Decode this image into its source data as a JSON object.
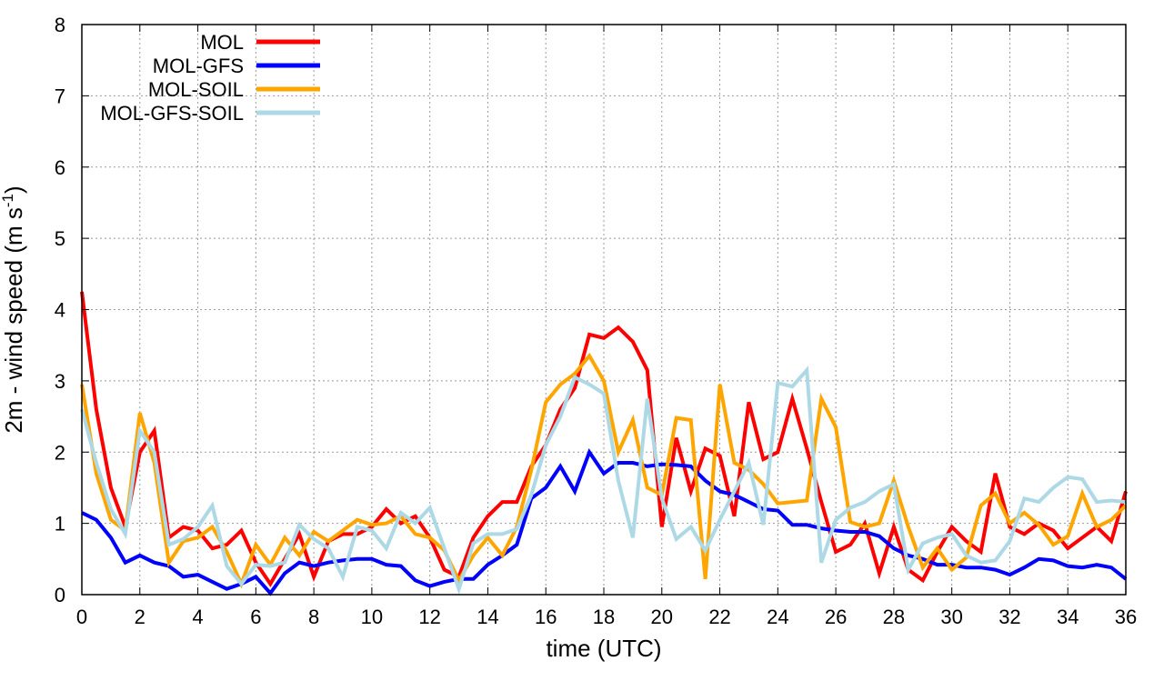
{
  "chart_data": {
    "type": "line",
    "xlabel": "time (UTC)",
    "ylabel": {
      "main": "2m - wind speed  (m s",
      "sup": "-1",
      "close": ")"
    },
    "xlim": [
      0,
      36
    ],
    "ylim": [
      0,
      8
    ],
    "xticks": [
      0,
      2,
      4,
      6,
      8,
      10,
      12,
      14,
      16,
      18,
      20,
      22,
      24,
      26,
      28,
      30,
      32,
      34,
      36
    ],
    "yticks": [
      0,
      1,
      2,
      3,
      4,
      5,
      6,
      7,
      8
    ],
    "grid": true,
    "legend_position": "top-left",
    "series": [
      {
        "name": "MOL",
        "color": "#ff0000",
        "points": [
          [
            0,
            4.25
          ],
          [
            0.5,
            2.6
          ],
          [
            1,
            1.5
          ],
          [
            1.5,
            0.95
          ],
          [
            2,
            2.0
          ],
          [
            2.5,
            2.3
          ],
          [
            3,
            0.8
          ],
          [
            3.5,
            0.95
          ],
          [
            4,
            0.9
          ],
          [
            4.5,
            0.65
          ],
          [
            5,
            0.7
          ],
          [
            5.5,
            0.9
          ],
          [
            6,
            0.45
          ],
          [
            6.5,
            0.15
          ],
          [
            7,
            0.5
          ],
          [
            7.5,
            0.85
          ],
          [
            8,
            0.25
          ],
          [
            8.5,
            0.75
          ],
          [
            9,
            0.85
          ],
          [
            9.5,
            0.85
          ],
          [
            10,
            0.95
          ],
          [
            10.5,
            1.2
          ],
          [
            11,
            1.0
          ],
          [
            11.5,
            1.1
          ],
          [
            12,
            0.8
          ],
          [
            12.5,
            0.35
          ],
          [
            13,
            0.25
          ],
          [
            13.5,
            0.8
          ],
          [
            14,
            1.1
          ],
          [
            14.5,
            1.3
          ],
          [
            15,
            1.3
          ],
          [
            15.5,
            1.8
          ],
          [
            16,
            2.1
          ],
          [
            16.5,
            2.6
          ],
          [
            17,
            2.9
          ],
          [
            17.5,
            3.65
          ],
          [
            18,
            3.6
          ],
          [
            18.5,
            3.75
          ],
          [
            19,
            3.55
          ],
          [
            19.5,
            3.15
          ],
          [
            20,
            0.95
          ],
          [
            20.5,
            2.2
          ],
          [
            21,
            1.45
          ],
          [
            21.5,
            2.05
          ],
          [
            22,
            1.95
          ],
          [
            22.5,
            1.1
          ],
          [
            23,
            2.7
          ],
          [
            23.5,
            1.9
          ],
          [
            24,
            2.0
          ],
          [
            24.5,
            2.75
          ],
          [
            25,
            2.05
          ],
          [
            25.5,
            1.3
          ],
          [
            26,
            0.6
          ],
          [
            26.5,
            0.7
          ],
          [
            27,
            1.0
          ],
          [
            27.5,
            0.3
          ],
          [
            28,
            0.95
          ],
          [
            28.5,
            0.35
          ],
          [
            29,
            0.2
          ],
          [
            29.5,
            0.6
          ],
          [
            30,
            0.95
          ],
          [
            30.5,
            0.75
          ],
          [
            31,
            0.6
          ],
          [
            31.5,
            1.7
          ],
          [
            32,
            0.95
          ],
          [
            32.5,
            0.85
          ],
          [
            33,
            1.0
          ],
          [
            33.5,
            0.9
          ],
          [
            34,
            0.65
          ],
          [
            34.5,
            0.8
          ],
          [
            35,
            0.95
          ],
          [
            35.5,
            0.75
          ],
          [
            36,
            1.45
          ]
        ]
      },
      {
        "name": "MOL-GFS",
        "color": "#0000ff",
        "points": [
          [
            0,
            1.15
          ],
          [
            0.5,
            1.05
          ],
          [
            1,
            0.8
          ],
          [
            1.5,
            0.45
          ],
          [
            2,
            0.55
          ],
          [
            2.5,
            0.45
          ],
          [
            3,
            0.4
          ],
          [
            3.5,
            0.25
          ],
          [
            4,
            0.28
          ],
          [
            4.5,
            0.18
          ],
          [
            5,
            0.08
          ],
          [
            5.5,
            0.15
          ],
          [
            6,
            0.25
          ],
          [
            6.5,
            0.02
          ],
          [
            7,
            0.3
          ],
          [
            7.5,
            0.45
          ],
          [
            8,
            0.4
          ],
          [
            8.5,
            0.45
          ],
          [
            9,
            0.48
          ],
          [
            9.5,
            0.5
          ],
          [
            10,
            0.5
          ],
          [
            10.5,
            0.42
          ],
          [
            11,
            0.4
          ],
          [
            11.5,
            0.2
          ],
          [
            12,
            0.12
          ],
          [
            12.5,
            0.18
          ],
          [
            13,
            0.22
          ],
          [
            13.5,
            0.22
          ],
          [
            14,
            0.42
          ],
          [
            14.5,
            0.55
          ],
          [
            15,
            0.7
          ],
          [
            15.5,
            1.35
          ],
          [
            16,
            1.5
          ],
          [
            16.5,
            1.8
          ],
          [
            17,
            1.45
          ],
          [
            17.5,
            2.0
          ],
          [
            18,
            1.7
          ],
          [
            18.5,
            1.85
          ],
          [
            19,
            1.85
          ],
          [
            19.5,
            1.8
          ],
          [
            20,
            1.83
          ],
          [
            20.5,
            1.82
          ],
          [
            21,
            1.8
          ],
          [
            21.5,
            1.6
          ],
          [
            22,
            1.45
          ],
          [
            22.5,
            1.4
          ],
          [
            23,
            1.3
          ],
          [
            23.5,
            1.2
          ],
          [
            24,
            1.18
          ],
          [
            24.5,
            0.98
          ],
          [
            25,
            0.98
          ],
          [
            25.5,
            0.93
          ],
          [
            26,
            0.9
          ],
          [
            26.5,
            0.88
          ],
          [
            27,
            0.88
          ],
          [
            27.5,
            0.82
          ],
          [
            28,
            0.65
          ],
          [
            28.5,
            0.55
          ],
          [
            29,
            0.5
          ],
          [
            29.5,
            0.42
          ],
          [
            30,
            0.42
          ],
          [
            30.5,
            0.38
          ],
          [
            31,
            0.38
          ],
          [
            31.5,
            0.35
          ],
          [
            32,
            0.28
          ],
          [
            32.5,
            0.38
          ],
          [
            33,
            0.5
          ],
          [
            33.5,
            0.48
          ],
          [
            34,
            0.4
          ],
          [
            34.5,
            0.38
          ],
          [
            35,
            0.42
          ],
          [
            35.5,
            0.38
          ],
          [
            36,
            0.22
          ]
        ]
      },
      {
        "name": "MOL-SOIL",
        "color": "#ffa500",
        "points": [
          [
            0,
            2.95
          ],
          [
            0.5,
            1.7
          ],
          [
            1,
            1.05
          ],
          [
            1.5,
            0.9
          ],
          [
            2,
            2.55
          ],
          [
            2.5,
            1.85
          ],
          [
            3,
            0.45
          ],
          [
            3.5,
            0.75
          ],
          [
            4,
            0.8
          ],
          [
            4.5,
            0.95
          ],
          [
            5,
            0.6
          ],
          [
            5.5,
            0.15
          ],
          [
            6,
            0.7
          ],
          [
            6.5,
            0.42
          ],
          [
            7,
            0.8
          ],
          [
            7.5,
            0.55
          ],
          [
            8,
            0.88
          ],
          [
            8.5,
            0.75
          ],
          [
            9,
            0.9
          ],
          [
            9.5,
            1.05
          ],
          [
            10,
            0.98
          ],
          [
            10.5,
            1.0
          ],
          [
            11,
            1.1
          ],
          [
            11.5,
            0.85
          ],
          [
            12,
            0.8
          ],
          [
            12.5,
            0.62
          ],
          [
            13,
            0.2
          ],
          [
            13.5,
            0.55
          ],
          [
            14,
            0.8
          ],
          [
            14.5,
            0.55
          ],
          [
            15,
            0.95
          ],
          [
            15.5,
            1.75
          ],
          [
            16,
            2.7
          ],
          [
            16.5,
            2.95
          ],
          [
            17,
            3.1
          ],
          [
            17.5,
            3.35
          ],
          [
            18,
            3.0
          ],
          [
            18.5,
            2.0
          ],
          [
            19,
            2.45
          ],
          [
            19.5,
            1.5
          ],
          [
            20,
            1.4
          ],
          [
            20.5,
            2.48
          ],
          [
            21,
            2.45
          ],
          [
            21.5,
            0.22
          ],
          [
            22,
            2.95
          ],
          [
            22.5,
            1.85
          ],
          [
            23,
            1.75
          ],
          [
            23.5,
            1.55
          ],
          [
            24,
            1.28
          ],
          [
            24.5,
            1.3
          ],
          [
            25,
            1.32
          ],
          [
            25.5,
            2.75
          ],
          [
            26,
            2.35
          ],
          [
            26.5,
            1.02
          ],
          [
            27,
            0.95
          ],
          [
            27.5,
            1.0
          ],
          [
            28,
            1.6
          ],
          [
            28.5,
            0.95
          ],
          [
            29,
            0.38
          ],
          [
            29.5,
            0.65
          ],
          [
            30,
            0.35
          ],
          [
            30.5,
            0.52
          ],
          [
            31,
            1.25
          ],
          [
            31.5,
            1.42
          ],
          [
            32,
            1.0
          ],
          [
            32.5,
            1.15
          ],
          [
            33,
            0.98
          ],
          [
            33.5,
            0.7
          ],
          [
            34,
            0.82
          ],
          [
            34.5,
            1.42
          ],
          [
            35,
            0.95
          ],
          [
            35.5,
            1.05
          ],
          [
            36,
            1.25
          ]
        ]
      },
      {
        "name": "MOL-GFS-SOIL",
        "color": "#add8e6",
        "points": [
          [
            0,
            2.6
          ],
          [
            0.5,
            1.85
          ],
          [
            1,
            1.2
          ],
          [
            1.5,
            0.85
          ],
          [
            2,
            2.3
          ],
          [
            2.5,
            2.0
          ],
          [
            3,
            0.7
          ],
          [
            3.5,
            0.78
          ],
          [
            4,
            0.95
          ],
          [
            4.5,
            1.25
          ],
          [
            5,
            0.4
          ],
          [
            5.5,
            0.15
          ],
          [
            6,
            0.42
          ],
          [
            6.5,
            0.4
          ],
          [
            7,
            0.45
          ],
          [
            7.5,
            0.98
          ],
          [
            8,
            0.78
          ],
          [
            8.5,
            0.65
          ],
          [
            9,
            0.25
          ],
          [
            9.5,
            0.95
          ],
          [
            10,
            0.9
          ],
          [
            10.5,
            0.65
          ],
          [
            11,
            1.15
          ],
          [
            11.5,
            1.0
          ],
          [
            12,
            1.22
          ],
          [
            12.5,
            0.65
          ],
          [
            13,
            0.08
          ],
          [
            13.5,
            0.72
          ],
          [
            14,
            0.85
          ],
          [
            14.5,
            0.85
          ],
          [
            15,
            0.92
          ],
          [
            15.5,
            1.4
          ],
          [
            16,
            2.1
          ],
          [
            16.5,
            2.5
          ],
          [
            17,
            3.05
          ],
          [
            17.5,
            2.95
          ],
          [
            18,
            2.82
          ],
          [
            18.5,
            1.6
          ],
          [
            19,
            0.8
          ],
          [
            19.5,
            2.75
          ],
          [
            20,
            1.35
          ],
          [
            20.5,
            0.78
          ],
          [
            21,
            0.95
          ],
          [
            21.5,
            0.62
          ],
          [
            22,
            1.05
          ],
          [
            22.5,
            1.45
          ],
          [
            23,
            1.85
          ],
          [
            23.5,
            0.98
          ],
          [
            24,
            2.97
          ],
          [
            24.5,
            2.92
          ],
          [
            25,
            3.15
          ],
          [
            25.5,
            0.45
          ],
          [
            26,
            1.05
          ],
          [
            26.5,
            1.22
          ],
          [
            27,
            1.3
          ],
          [
            27.5,
            1.45
          ],
          [
            28,
            1.55
          ],
          [
            28.5,
            0.35
          ],
          [
            29,
            0.72
          ],
          [
            29.5,
            0.8
          ],
          [
            30,
            0.85
          ],
          [
            30.5,
            0.55
          ],
          [
            31,
            0.45
          ],
          [
            31.5,
            0.48
          ],
          [
            32,
            0.75
          ],
          [
            32.5,
            1.35
          ],
          [
            33,
            1.3
          ],
          [
            33.5,
            1.5
          ],
          [
            34,
            1.65
          ],
          [
            34.5,
            1.62
          ],
          [
            35,
            1.3
          ],
          [
            35.5,
            1.32
          ],
          [
            36,
            1.3
          ]
        ]
      }
    ]
  }
}
